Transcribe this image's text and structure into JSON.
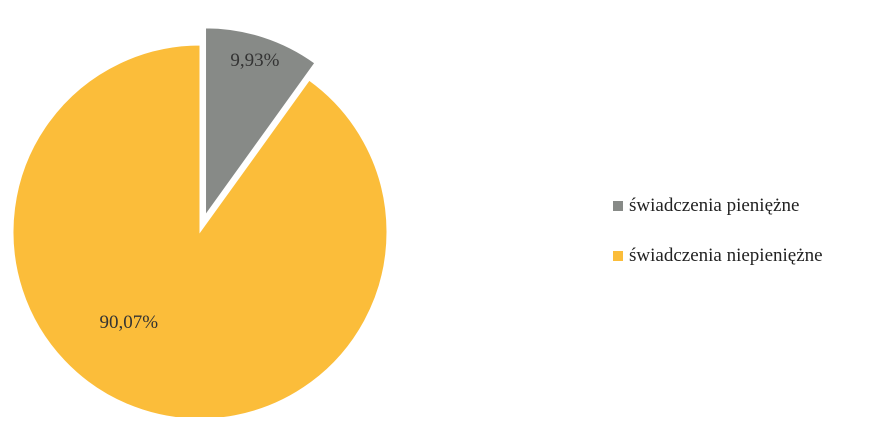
{
  "chart_data": {
    "type": "pie",
    "categories": [
      "świadczenia pieniężne",
      "świadczenia niepieniężne"
    ],
    "values": [
      9.93,
      90.07
    ],
    "data_labels": [
      "9,93%",
      "90,07%"
    ],
    "colors": [
      "#878a87",
      "#fbbd3a"
    ],
    "exploded_slice": "świadczenia pieniężne",
    "legend_position": "right"
  }
}
